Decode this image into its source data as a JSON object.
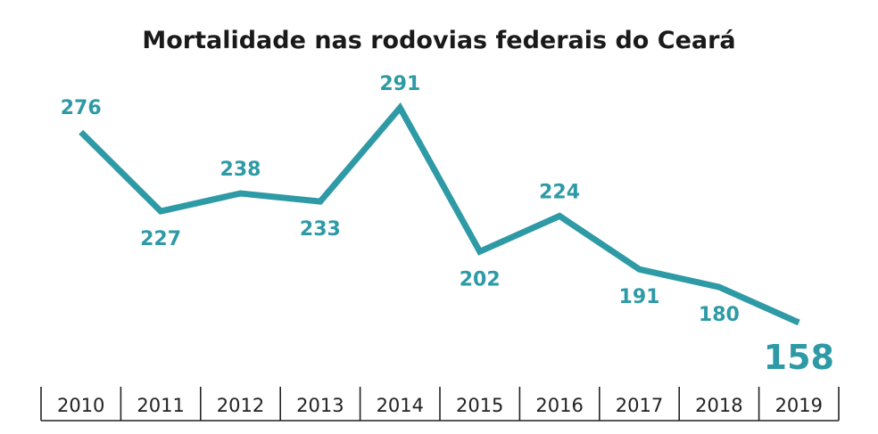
{
  "colors": {
    "accent": "#2e9aa6",
    "text": "#1a1a1a",
    "axis": "#222222"
  },
  "chart_data": {
    "type": "line",
    "title": "Mortalidade nas rodovias federais do Ceará",
    "xlabel": "",
    "ylabel": "",
    "categories": [
      "2010",
      "2011",
      "2012",
      "2013",
      "2014",
      "2015",
      "2016",
      "2017",
      "2018",
      "2019"
    ],
    "series": [
      {
        "values": [
          276,
          227,
          238,
          233,
          291,
          202,
          224,
          191,
          180,
          158
        ]
      }
    ],
    "data_labels": [
      "276",
      "227",
      "238",
      "233",
      "291",
      "202",
      "224",
      "191",
      "180",
      "158"
    ],
    "grid": false,
    "legend": "none"
  }
}
